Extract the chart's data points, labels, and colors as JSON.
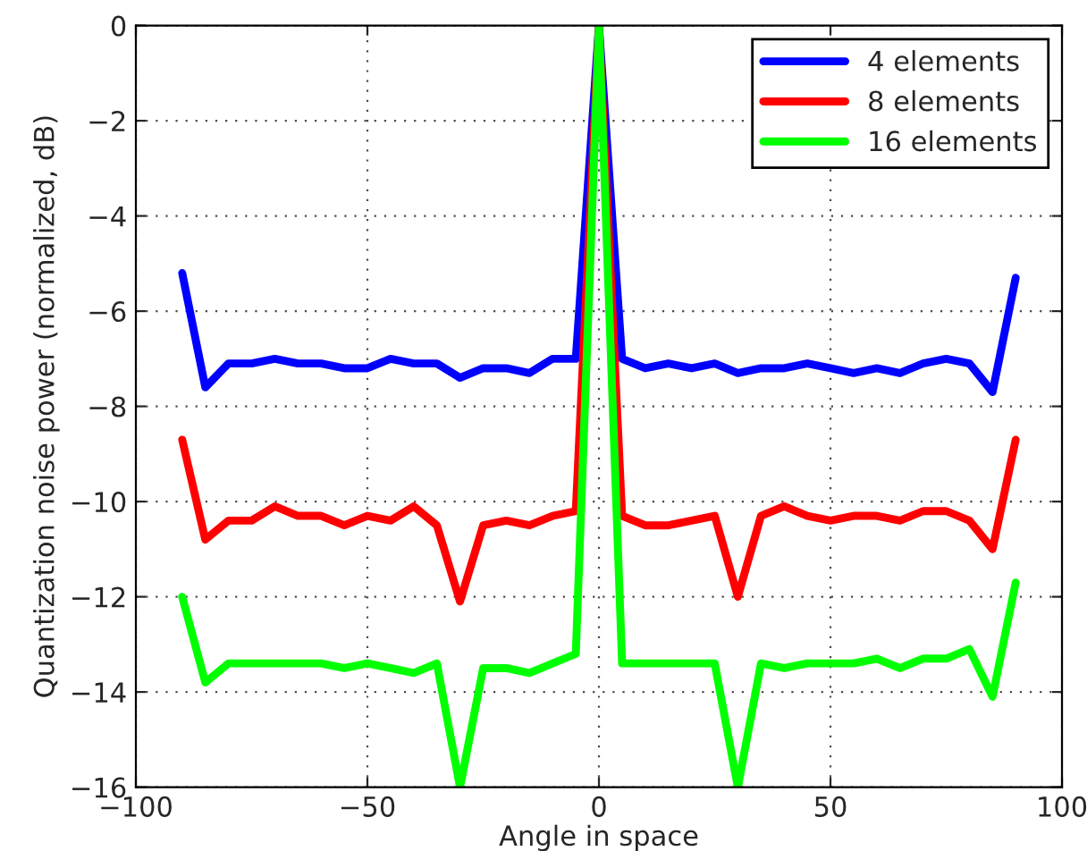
{
  "chart_data": {
    "type": "line",
    "xlabel": "Angle in space",
    "ylabel": "Quantization noise power (normalized, dB)",
    "x": [
      -90,
      -85,
      -80,
      -75,
      -70,
      -65,
      -60,
      -55,
      -50,
      -45,
      -40,
      -35,
      -30,
      -25,
      -20,
      -15,
      -10,
      -5,
      0,
      5,
      10,
      15,
      20,
      25,
      30,
      35,
      40,
      45,
      50,
      55,
      60,
      65,
      70,
      75,
      80,
      85,
      90
    ],
    "series": [
      {
        "name": "4 elements",
        "color": "#0000ff",
        "values": [
          -5.2,
          -7.6,
          -7.1,
          -7.1,
          -7.0,
          -7.1,
          -7.1,
          -7.2,
          -7.2,
          -7.0,
          -7.1,
          -7.1,
          -7.4,
          -7.2,
          -7.2,
          -7.3,
          -7.0,
          -7.0,
          0,
          -7.0,
          -7.2,
          -7.1,
          -7.2,
          -7.1,
          -7.3,
          -7.2,
          -7.2,
          -7.1,
          -7.2,
          -7.3,
          -7.2,
          -7.3,
          -7.1,
          -7.0,
          -7.1,
          -7.7,
          -5.3
        ]
      },
      {
        "name": "8 elements",
        "color": "#ff0000",
        "values": [
          -8.7,
          -10.8,
          -10.4,
          -10.4,
          -10.1,
          -10.3,
          -10.3,
          -10.5,
          -10.3,
          -10.4,
          -10.1,
          -10.5,
          -12.1,
          -10.5,
          -10.4,
          -10.5,
          -10.3,
          -10.2,
          0,
          -10.3,
          -10.5,
          -10.5,
          -10.4,
          -10.3,
          -12.0,
          -10.3,
          -10.1,
          -10.3,
          -10.4,
          -10.3,
          -10.3,
          -10.4,
          -10.2,
          -10.2,
          -10.4,
          -11.0,
          -8.7
        ]
      },
      {
        "name": "16 elements",
        "color": "#00ff00",
        "values": [
          -12.0,
          -13.8,
          -13.4,
          -13.4,
          -13.4,
          -13.4,
          -13.4,
          -13.5,
          -13.4,
          -13.5,
          -13.6,
          -13.4,
          -16.0,
          -13.5,
          -13.5,
          -13.6,
          -13.4,
          -13.2,
          0,
          -13.4,
          -13.4,
          -13.4,
          -13.4,
          -13.4,
          -16.0,
          -13.4,
          -13.5,
          -13.4,
          -13.4,
          -13.4,
          -13.3,
          -13.5,
          -13.3,
          -13.3,
          -13.1,
          -14.1,
          -11.7
        ]
      }
    ],
    "xlim": [
      -100,
      100
    ],
    "xticks": [
      -100,
      -50,
      0,
      50,
      100
    ],
    "ylim": [
      -16,
      0
    ],
    "yticks": [
      -16,
      -14,
      -12,
      -10,
      -8,
      -6,
      -4,
      -2,
      0
    ],
    "grid": true,
    "legend": "top right",
    "line_style": "solid",
    "marker": "none"
  }
}
